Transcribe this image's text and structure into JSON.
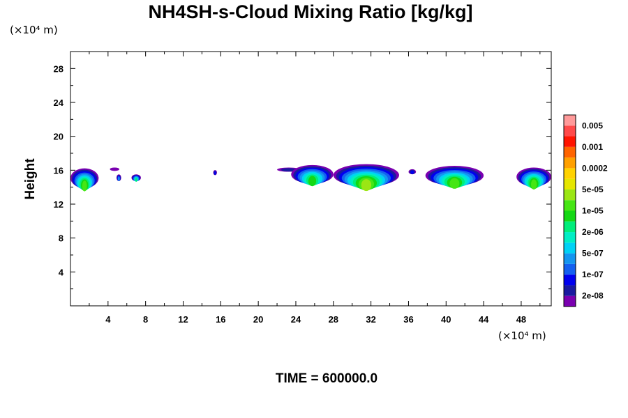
{
  "chart_data": {
    "type": "heatmap",
    "title": "NH4SH-s-Cloud Mixing Ratio [kg/kg]",
    "ylabel": "Height",
    "x_unit": "(×10⁴ m)",
    "y_unit": "(×10⁴ m)",
    "footer": "TIME = 600000.0",
    "xlim": [
      0,
      51.2
    ],
    "ylim": [
      0,
      30
    ],
    "x_ticks": [
      4,
      8,
      12,
      16,
      20,
      24,
      28,
      32,
      36,
      40,
      44,
      48
    ],
    "x_tick_labels": [
      "4",
      "8",
      "12",
      "16",
      "20",
      "24",
      "28",
      "32",
      "36",
      "40",
      "44",
      "48"
    ],
    "y_ticks": [
      4,
      8,
      12,
      16,
      20,
      24,
      28
    ],
    "y_tick_labels": [
      "4",
      "8",
      "12",
      "16",
      "20",
      "24",
      "28"
    ],
    "colorbar": {
      "colors": [
        "#7a00b0",
        "#1a1aa0",
        "#0000ee",
        "#1460f0",
        "#1496f0",
        "#00d2f5",
        "#00eec4",
        "#00ee7a",
        "#14d814",
        "#46e614",
        "#9be614",
        "#e6e600",
        "#ffd200",
        "#ffa000",
        "#ff6400",
        "#ff1400",
        "#ff4a4a",
        "#ff9a9a"
      ],
      "labels": [
        "2e-08",
        "1e-07",
        "5e-07",
        "2e-06",
        "1e-05",
        "5e-05",
        "0.0002",
        "0.001",
        "0.005"
      ]
    },
    "clouds": [
      {
        "x": [
          0.0,
          3.0
        ],
        "y": [
          14.0,
          16.3
        ],
        "peak": 9
      },
      {
        "x": [
          4.2,
          5.2
        ],
        "y": [
          16.0,
          16.4
        ],
        "peak": 0
      },
      {
        "x": [
          4.9,
          5.4
        ],
        "y": [
          14.8,
          15.6
        ],
        "peak": 4
      },
      {
        "x": [
          6.5,
          7.5
        ],
        "y": [
          14.8,
          15.6
        ],
        "peak": 7
      },
      {
        "x": [
          15.2,
          15.6
        ],
        "y": [
          15.5,
          16.1
        ],
        "peak": 2
      },
      {
        "x": [
          22.0,
          24.5
        ],
        "y": [
          15.9,
          16.4
        ],
        "peak": 1
      },
      {
        "x": [
          23.5,
          28.0
        ],
        "y": [
          14.5,
          16.7
        ],
        "peak": 8
      },
      {
        "x": [
          28.0,
          35.0
        ],
        "y": [
          14.2,
          16.8
        ],
        "peak": 10
      },
      {
        "x": [
          36.0,
          36.8
        ],
        "y": [
          15.6,
          16.2
        ],
        "peak": 2
      },
      {
        "x": [
          37.8,
          44.0
        ],
        "y": [
          14.3,
          16.6
        ],
        "peak": 9
      },
      {
        "x": [
          47.5,
          51.2
        ],
        "y": [
          14.2,
          16.4
        ],
        "peak": 9
      }
    ]
  }
}
